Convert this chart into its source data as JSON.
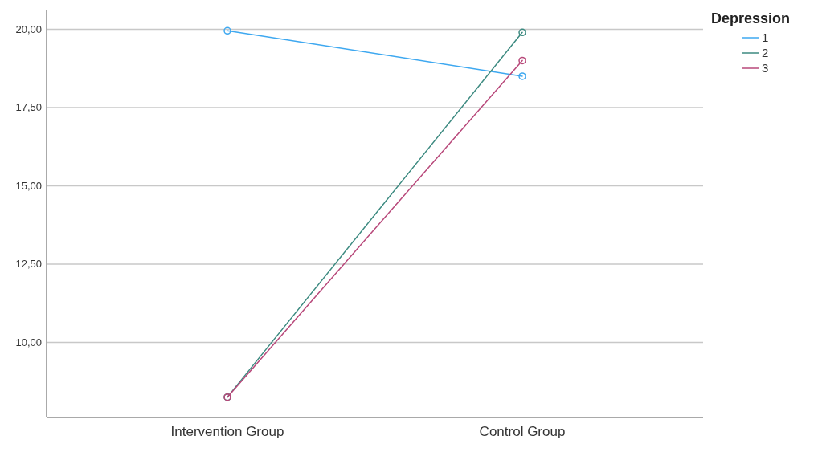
{
  "chart_data": {
    "type": "line",
    "legend_title": "Depression",
    "legend": "top right",
    "grid": "y",
    "marker": "circle",
    "line_style": "solid",
    "categories": [
      "Intervention Group",
      "Control Group"
    ],
    "ylim": [
      7.6,
      20.6
    ],
    "yticks": [
      {
        "value": 10,
        "label": "10,00"
      },
      {
        "value": 12.5,
        "label": "12,50"
      },
      {
        "value": 15,
        "label": "15,00"
      },
      {
        "value": 17.5,
        "label": "17,50"
      },
      {
        "value": 20,
        "label": "20,00"
      }
    ],
    "series": [
      {
        "name": "1",
        "color": "#3ea8f0",
        "values": [
          19.95,
          18.5
        ]
      },
      {
        "name": "2",
        "color": "#3c8a80",
        "values": [
          8.25,
          19.9
        ]
      },
      {
        "name": "3",
        "color": "#b8487a",
        "values": [
          8.25,
          19.0
        ]
      }
    ]
  }
}
